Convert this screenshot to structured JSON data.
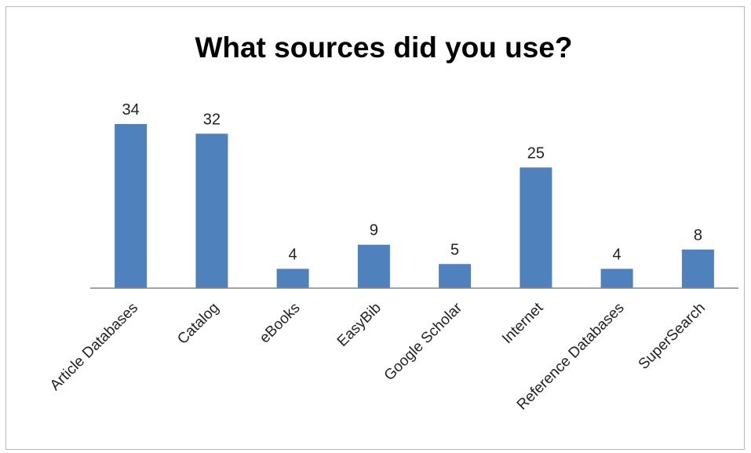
{
  "chart_data": {
    "type": "bar",
    "title": "What sources did you use?",
    "xlabel": "",
    "ylabel": "",
    "categories": [
      "Article Databases",
      "Catalog",
      "eBooks",
      "EasyBib",
      "Google Scholar",
      "Internet",
      "Reference Databases",
      "SuperSearch"
    ],
    "values": [
      34,
      32,
      4,
      9,
      5,
      25,
      4,
      8
    ],
    "ylim": [
      0,
      34
    ],
    "grid": false,
    "legend": "none",
    "data_labels": true,
    "colors": {
      "bar": "#4f81bd",
      "axis": "#868686",
      "border": "#b7b7b7"
    }
  }
}
